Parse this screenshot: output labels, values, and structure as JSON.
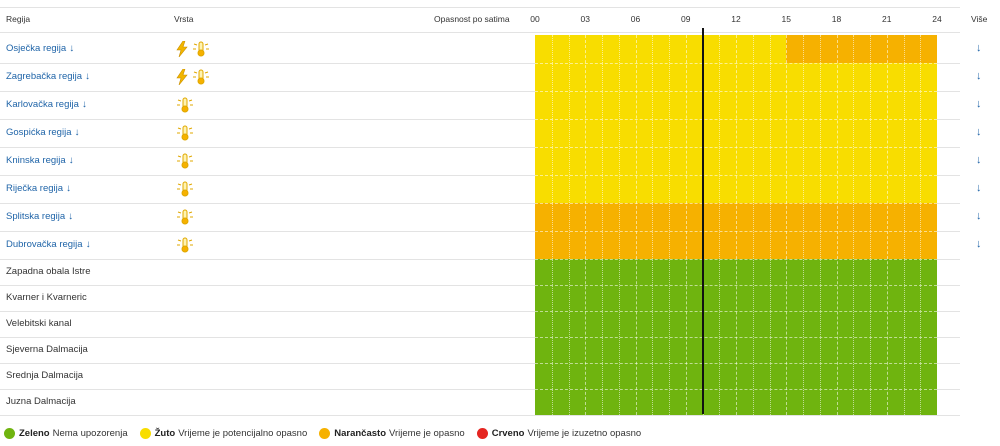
{
  "header": {
    "col_region": "Regija",
    "col_type": "Vrsta",
    "col_hours": "Opasnost po satima",
    "col_more": "Više",
    "hours": [
      "00",
      "03",
      "06",
      "09",
      "12",
      "15",
      "18",
      "21",
      "24"
    ]
  },
  "colors": {
    "green": "#6fb40f",
    "yellow": "#f8dd00",
    "orange": "#f6b100",
    "red": "#e52521",
    "link": "#1f64a8"
  },
  "rows": [
    {
      "name": "Osječka regija",
      "link": true,
      "icons": [
        "lightning-icon",
        "thermometer-icon"
      ],
      "segments": [
        {
          "from": 0,
          "to": 15,
          "level": "yellow"
        },
        {
          "from": 15,
          "to": 24,
          "level": "orange"
        }
      ]
    },
    {
      "name": "Zagrebačka regija",
      "link": true,
      "icons": [
        "lightning-icon",
        "thermometer-icon"
      ],
      "segments": [
        {
          "from": 0,
          "to": 24,
          "level": "yellow"
        }
      ]
    },
    {
      "name": "Karlovačka regija",
      "link": true,
      "icons": [
        "thermometer-icon"
      ],
      "segments": [
        {
          "from": 0,
          "to": 24,
          "level": "yellow"
        }
      ]
    },
    {
      "name": "Gospićka regija",
      "link": true,
      "icons": [
        "thermometer-icon"
      ],
      "segments": [
        {
          "from": 0,
          "to": 24,
          "level": "yellow"
        }
      ]
    },
    {
      "name": "Kninska regija",
      "link": true,
      "icons": [
        "thermometer-icon"
      ],
      "segments": [
        {
          "from": 0,
          "to": 24,
          "level": "yellow"
        }
      ]
    },
    {
      "name": "Riječka regija",
      "link": true,
      "icons": [
        "thermometer-icon"
      ],
      "segments": [
        {
          "from": 0,
          "to": 24,
          "level": "yellow"
        }
      ]
    },
    {
      "name": "Splitska regija",
      "link": true,
      "icons": [
        "thermometer-icon"
      ],
      "segments": [
        {
          "from": 0,
          "to": 24,
          "level": "orange"
        }
      ]
    },
    {
      "name": "Dubrovačka regija",
      "link": true,
      "icons": [
        "thermometer-icon"
      ],
      "segments": [
        {
          "from": 0,
          "to": 24,
          "level": "orange"
        }
      ]
    },
    {
      "name": "Zapadna obala Istre",
      "link": false,
      "icons": [],
      "segments": [
        {
          "from": 0,
          "to": 24,
          "level": "green"
        }
      ]
    },
    {
      "name": "Kvarner i Kvarneric",
      "link": false,
      "icons": [],
      "segments": [
        {
          "from": 0,
          "to": 24,
          "level": "green"
        }
      ]
    },
    {
      "name": "Velebitski kanal",
      "link": false,
      "icons": [],
      "segments": [
        {
          "from": 0,
          "to": 24,
          "level": "green"
        }
      ]
    },
    {
      "name": "Sjeverna Dalmacija",
      "link": false,
      "icons": [],
      "segments": [
        {
          "from": 0,
          "to": 24,
          "level": "green"
        }
      ]
    },
    {
      "name": "Srednja Dalmacija",
      "link": false,
      "icons": [],
      "segments": [
        {
          "from": 0,
          "to": 24,
          "level": "green"
        }
      ]
    },
    {
      "name": "Juzna Dalmacija",
      "link": false,
      "icons": [],
      "segments": [
        {
          "from": 0,
          "to": 24,
          "level": "green"
        }
      ]
    }
  ],
  "current_hour": 10,
  "legend": [
    {
      "level": "green",
      "label": "Zeleno",
      "desc": "Nema upozorenja"
    },
    {
      "level": "yellow",
      "label": "Žuto",
      "desc": "Vrijeme je potencijalno opasno"
    },
    {
      "level": "orange",
      "label": "Narančasto",
      "desc": "Vrijeme je opasno"
    },
    {
      "level": "red",
      "label": "Crveno",
      "desc": "Vrijeme je izuzetno opasno"
    }
  ]
}
